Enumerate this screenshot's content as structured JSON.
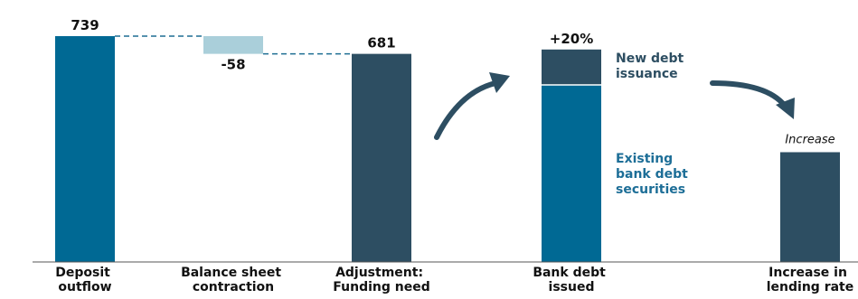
{
  "chart_data": {
    "type": "bar",
    "subtype": "waterfall",
    "categories": [
      [
        "Deposit",
        "outflow"
      ],
      [
        "Balance sheet",
        "contraction"
      ],
      [
        "Adjustment:",
        "Funding need"
      ],
      [
        "Bank debt",
        "issued"
      ],
      [
        "Increase in",
        "lending rate"
      ]
    ],
    "waterfall": {
      "start": 739,
      "change": -58,
      "total": 681,
      "labels": [
        "739",
        "-58",
        "681"
      ]
    },
    "stacked": {
      "segments": [
        {
          "name": "Existing bank debt securities",
          "label_lines": [
            "Existing",
            "bank debt",
            "securities"
          ],
          "value_relative": 100
        },
        {
          "name": "New debt issuance",
          "label_lines": [
            "New debt",
            "issuance"
          ],
          "value_relative": 20
        }
      ],
      "top_label": "+20%"
    },
    "final": {
      "label": "Increase",
      "value_relative": 62
    },
    "ylim": [
      0,
      800
    ],
    "grid": false,
    "legend": "none",
    "colors": {
      "primary": "#006994",
      "dark": "#2d4e62",
      "light": "#aacfda",
      "arrow": "#2d4e62",
      "connector": "#1e6f93",
      "label_blue": "#1d6e97",
      "label_dark": "#2d4e62"
    }
  }
}
